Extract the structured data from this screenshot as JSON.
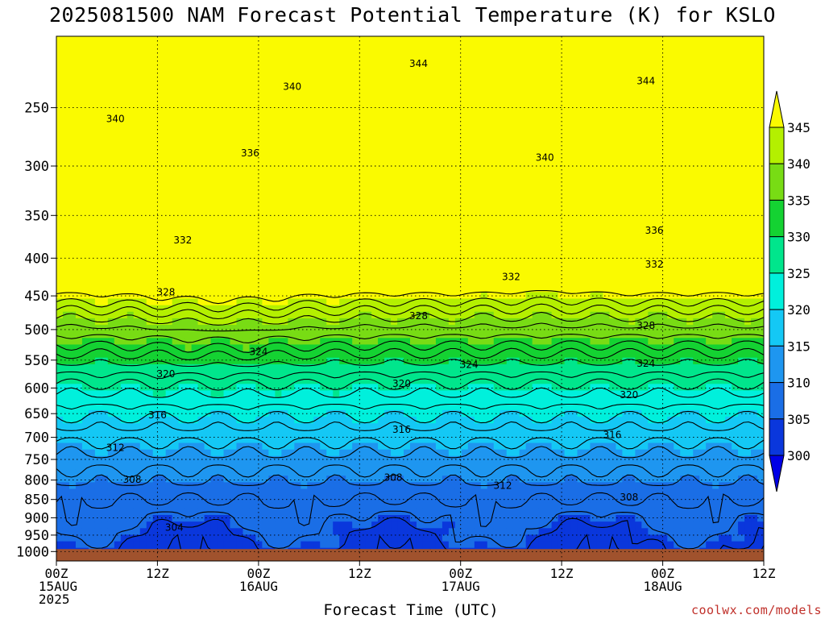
{
  "chart_data": {
    "type": "heatmap",
    "title": "2025081500 NAM Forecast Potential Temperature (K) for KSLO",
    "xlabel": "Forecast Time (UTC)",
    "ylabel": "",
    "credit": "coolwx.com/models",
    "y_scale": "log-pressure",
    "y_axis": {
      "label_units": "hPa",
      "ylim": [
        1030,
        200
      ],
      "ticks": [
        "250",
        "300",
        "350",
        "400",
        "450",
        "500",
        "550",
        "600",
        "650",
        "700",
        "750",
        "800",
        "850",
        "900",
        "950",
        "1000"
      ]
    },
    "x_axis": {
      "ticks": [
        {
          "line1": "00Z",
          "line2": "15AUG",
          "line3": "2025"
        },
        {
          "line1": "12Z",
          "line2": "",
          "line3": ""
        },
        {
          "line1": "00Z",
          "line2": "16AUG",
          "line3": ""
        },
        {
          "line1": "12Z",
          "line2": "",
          "line3": ""
        },
        {
          "line1": "00Z",
          "line2": "17AUG",
          "line3": ""
        },
        {
          "line1": "12Z",
          "line2": "",
          "line3": ""
        },
        {
          "line1": "00Z",
          "line2": "18AUG",
          "line3": ""
        },
        {
          "line1": "12Z",
          "line2": "",
          "line3": ""
        }
      ],
      "forecast_hours": [
        0,
        12,
        24,
        36,
        48,
        60,
        72,
        84
      ],
      "xlim_hours": [
        0,
        84
      ]
    },
    "grid": "dotted",
    "colorbar": {
      "labels": [
        "300",
        "305",
        "310",
        "315",
        "320",
        "325",
        "330",
        "335",
        "340",
        "345"
      ],
      "levels": [
        300,
        305,
        310,
        315,
        320,
        325,
        330,
        335,
        340,
        345
      ],
      "colors": [
        "#0000e6",
        "#0a37dc",
        "#1a6ee6",
        "#1e96f0",
        "#14c8f5",
        "#00f0dc",
        "#00e68c",
        "#14d232",
        "#78dc14",
        "#b4f000",
        "#fafa00"
      ],
      "placement": "right"
    },
    "ground_color": "#a0522d",
    "contour_interval": 2,
    "contour_labels": [
      {
        "value": "344",
        "hour": 43,
        "p": 218
      },
      {
        "value": "344",
        "hour": 70,
        "p": 230
      },
      {
        "value": "340",
        "hour": 28,
        "p": 234
      },
      {
        "value": "340",
        "hour": 7,
        "p": 259
      },
      {
        "value": "340",
        "hour": 58,
        "p": 292
      },
      {
        "value": "336",
        "hour": 23,
        "p": 288
      },
      {
        "value": "336",
        "hour": 71,
        "p": 367
      },
      {
        "value": "332",
        "hour": 15,
        "p": 378
      },
      {
        "value": "332",
        "hour": 54,
        "p": 424
      },
      {
        "value": "332",
        "hour": 71,
        "p": 408
      },
      {
        "value": "328",
        "hour": 13,
        "p": 445
      },
      {
        "value": "328",
        "hour": 43,
        "p": 479
      },
      {
        "value": "328",
        "hour": 70,
        "p": 494
      },
      {
        "value": "324",
        "hour": 24,
        "p": 536
      },
      {
        "value": "324",
        "hour": 49,
        "p": 558
      },
      {
        "value": "324",
        "hour": 70,
        "p": 556
      },
      {
        "value": "320",
        "hour": 13,
        "p": 574
      },
      {
        "value": "320",
        "hour": 41,
        "p": 592
      },
      {
        "value": "320",
        "hour": 68,
        "p": 613
      },
      {
        "value": "316",
        "hour": 12,
        "p": 653
      },
      {
        "value": "316",
        "hour": 41,
        "p": 683
      },
      {
        "value": "316",
        "hour": 66,
        "p": 695
      },
      {
        "value": "312",
        "hour": 7,
        "p": 723
      },
      {
        "value": "312",
        "hour": 53,
        "p": 814
      },
      {
        "value": "308",
        "hour": 9,
        "p": 799
      },
      {
        "value": "308",
        "hour": 40,
        "p": 794
      },
      {
        "value": "308",
        "hour": 68,
        "p": 844
      },
      {
        "value": "304",
        "hour": 14,
        "p": 928
      }
    ]
  }
}
